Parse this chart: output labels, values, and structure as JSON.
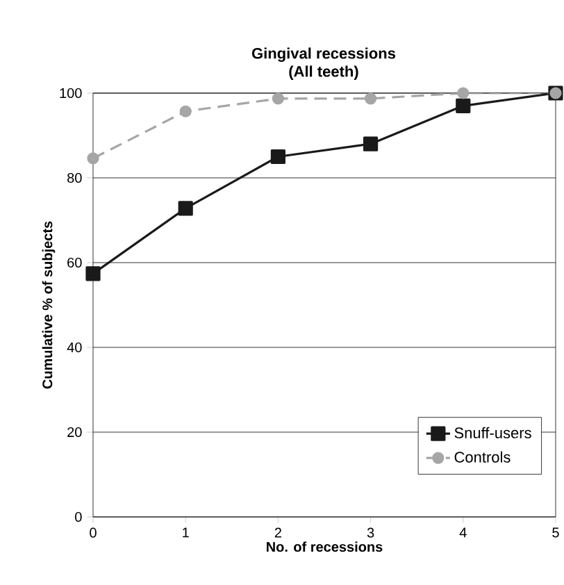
{
  "chart_data": {
    "type": "line",
    "title": "Gingival recessions",
    "subtitle": "(All teeth)",
    "xlabel": "No. of recessions",
    "ylabel": "Cumulative % of subjects",
    "x": [
      0,
      1,
      2,
      3,
      4,
      5
    ],
    "series": [
      {
        "name": "Snuff-users",
        "color": "#1a1a1a",
        "values": [
          57.4,
          72.8,
          85,
          88,
          97,
          100
        ],
        "marker": "square",
        "line_style": "solid"
      },
      {
        "name": "Controls",
        "color": "#a6a6a6",
        "values": [
          84.6,
          95.7,
          98.7,
          98.7,
          100,
          100
        ],
        "marker": "circle",
        "line_style": "dashed"
      }
    ],
    "xlim": [
      0,
      5
    ],
    "ylim": [
      0,
      100
    ],
    "xticks": [
      0,
      1,
      2,
      3,
      4,
      5
    ],
    "yticks": [
      0,
      20,
      40,
      60,
      80,
      100
    ],
    "grid": "y",
    "legend": "bottom right"
  }
}
